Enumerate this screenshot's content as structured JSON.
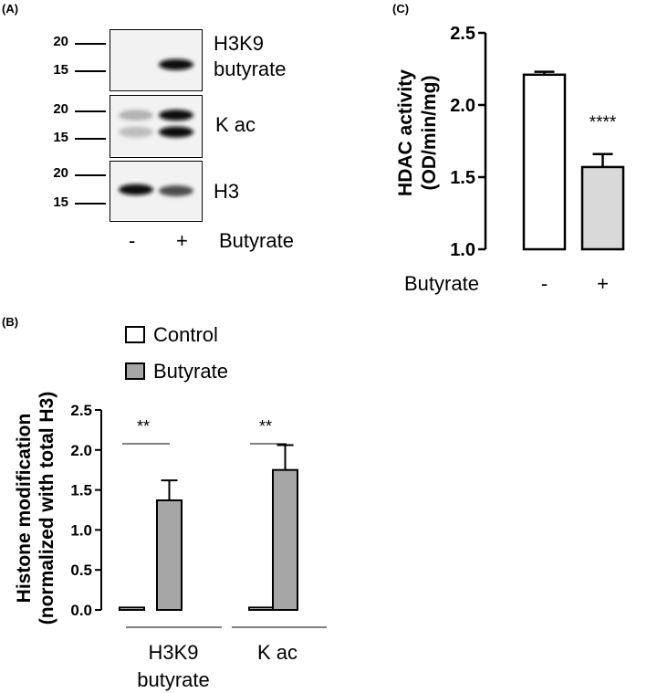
{
  "panels": {
    "a": "(A)",
    "b": "(B)",
    "c": "(C)"
  },
  "blot": {
    "rows": [
      {
        "markers": [
          "20",
          "15"
        ],
        "label": "H3K9\nbutyrate",
        "bands": [
          {
            "lane": 1,
            "y": 0.22,
            "darkness": 0.0
          },
          {
            "lane": 2,
            "y": 0.58,
            "darkness": 1.0
          }
        ]
      },
      {
        "markers": [
          "20",
          "15"
        ],
        "label": "K ac",
        "bands": [
          {
            "lane": 1,
            "y": 0.32,
            "darkness": 0.25
          },
          {
            "lane": 1,
            "y": 0.6,
            "darkness": 0.2
          },
          {
            "lane": 2,
            "y": 0.32,
            "darkness": 1.0
          },
          {
            "lane": 2,
            "y": 0.6,
            "darkness": 1.0
          }
        ]
      },
      {
        "markers": [
          "20",
          "15"
        ],
        "label": "H3",
        "bands": [
          {
            "lane": 1,
            "y": 0.48,
            "darkness": 1.0
          },
          {
            "lane": 2,
            "y": 0.5,
            "darkness": 0.7
          }
        ]
      }
    ],
    "lanes": [
      "-",
      "+"
    ],
    "treatment_label": "Butyrate"
  },
  "chart_data": [
    {
      "id": "b",
      "type": "bar",
      "categories": [
        "H3K9\nbutyrate",
        "K ac"
      ],
      "series": [
        {
          "name": "Control",
          "values": [
            0.03,
            0.03
          ],
          "errors": [
            0.01,
            0.01
          ],
          "color": "#ffffff"
        },
        {
          "name": "Butyrate",
          "values": [
            1.37,
            1.75
          ],
          "errors": [
            0.25,
            0.31
          ],
          "color": "#a6a6a6"
        }
      ],
      "ylabel": "Histone modification\n(normalized with total H3)",
      "ylim": [
        0,
        2.5
      ],
      "yticks": [
        "0.0",
        "0.5",
        "1.0",
        "1.5",
        "2.0",
        "2.5"
      ],
      "significance": [
        "**",
        "**"
      ],
      "legend": "top-left"
    },
    {
      "id": "c",
      "type": "bar",
      "categories": [
        "-",
        "+"
      ],
      "values": [
        2.21,
        1.57
      ],
      "errors": [
        0.02,
        0.09
      ],
      "colors": [
        "#ffffff",
        "#d9d9d9"
      ],
      "xlabel": "Butyrate",
      "ylabel": "HDAC activity\n(OD/min/mg)",
      "ylim": [
        1.0,
        2.5
      ],
      "yticks": [
        "1.0",
        "1.5",
        "2.0",
        "2.5"
      ],
      "significance": [
        "",
        "****"
      ]
    }
  ]
}
